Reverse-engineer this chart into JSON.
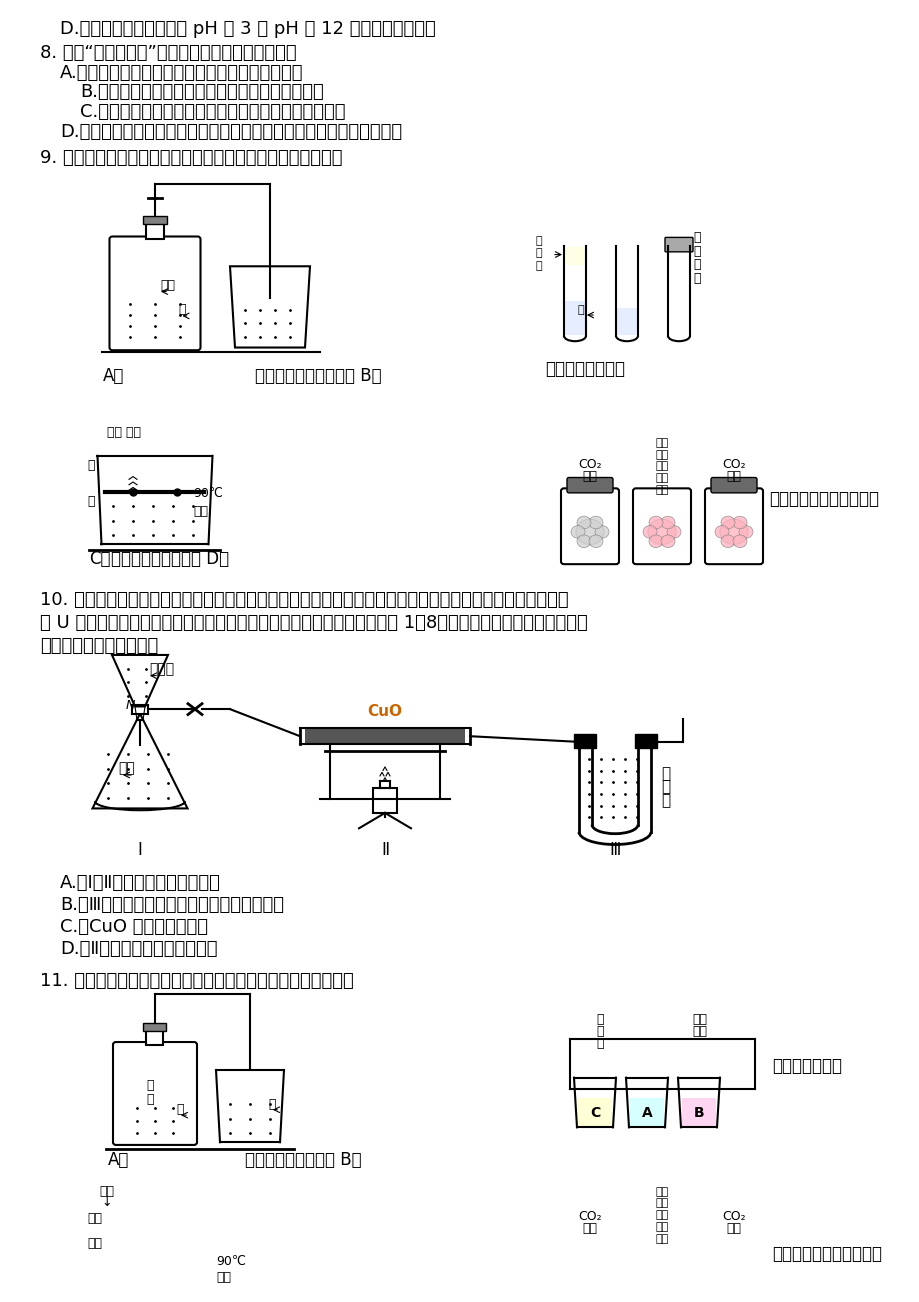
{
  "background_color": "#ffffff",
  "text_color": "#000000",
  "line1": "D.　用紫色石蕊溶液鉴别 pH 为 3 和 pH 为 12 的两瓶无标签溶液",
  "line2": "8. 下列“家庭小实验”不能达到预期目的是（　　）",
  "line3": "A.　用柠檬酸、果汁、白糖、水、小苏打等制汽水",
  "line4": "B.　向洁净的碎鸡豛壳中加入食盐水可制二氧化碳",
  "line5": "C.　用酒精浸泡烂枯的某些植物的花瓣可制酸碱指示剂",
  "line6": "D.　用空塑料瓶、小卵石、石英砂、活性炭、蓬松棉等制作简易净水器",
  "line7": "9. 下列问题的研究中，未利用对比实验思想方法的是（　　）",
  "q10_line1": "10. 用下图装置测定水中氢、氧元素的质量比，其方法是分别测定通氢气前后玻璃管（包括氧化铜）的质量差",
  "q10_line2": "和 U 型管（包括笹石灰）的质量差，计算得氢元素和氧元素的质量比大于 1：8．下列对导致这一结果的原因的",
  "q10_line3": "分析中合理的是（　　）",
  "q10_A": "A.　Ⅰ、Ⅱ装置之间缺少干燥装置",
  "q10_B": "B.　Ⅲ装置干燥剂量不足，水没有被完全吸收",
  "q10_C": "C.　CuO 没有全部被还原",
  "q10_D": "D.　Ⅱ装置中玻璃管内有水冷凝",
  "q11_line": "11. 下列问题的研究中，未利用对比实验思想方法的是（　　）"
}
